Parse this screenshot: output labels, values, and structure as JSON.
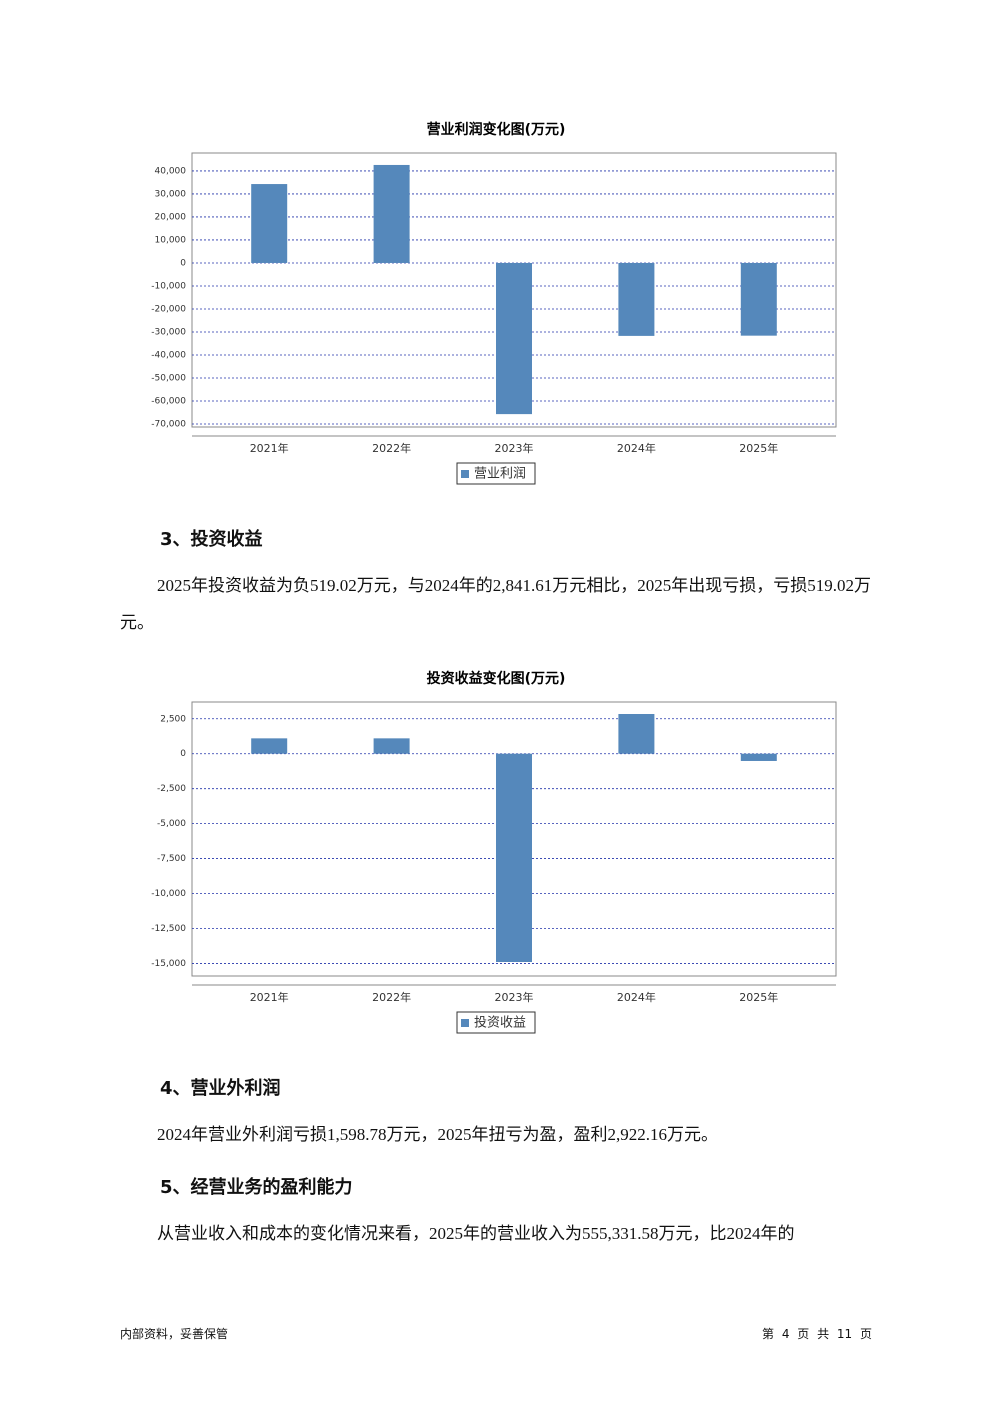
{
  "chart_data": [
    {
      "type": "bar",
      "title": "营业利润变化图(万元)",
      "categories": [
        "2021年",
        "2022年",
        "2023年",
        "2024年",
        "2025年"
      ],
      "series": [
        {
          "name": "营业利润",
          "color": "#5588bb",
          "values": [
            34300,
            42600,
            -65700,
            -31700,
            -31600
          ]
        }
      ],
      "ylim": [
        -71300,
        47800
      ],
      "yticks": [
        {
          "value": -70000,
          "label": "-70,000"
        },
        {
          "value": -60000,
          "label": "-60,000"
        },
        {
          "value": -50000,
          "label": "-50,000"
        },
        {
          "value": -40000,
          "label": "-40,000"
        },
        {
          "value": -30000,
          "label": "-30,000"
        },
        {
          "value": -20000,
          "label": "-20,000"
        },
        {
          "value": -10000,
          "label": "-10,000"
        },
        0,
        {
          "value": 10000,
          "label": "10,000"
        },
        {
          "value": 20000,
          "label": "20,000"
        },
        {
          "value": 30000,
          "label": "30,000"
        },
        {
          "value": 40000,
          "label": "40,000"
        }
      ],
      "grid": true,
      "legend": "bottom"
    },
    {
      "type": "bar",
      "title": "投资收益变化图(万元)",
      "categories": [
        "2021年",
        "2022年",
        "2023年",
        "2024年",
        "2025年"
      ],
      "series": [
        {
          "name": "投资收益",
          "color": "#5588bb",
          "values": [
            1100,
            1100,
            -14900,
            2841.61,
            -519.02
          ]
        }
      ],
      "ylim": [
        -15900,
        3700
      ],
      "yticks": [
        {
          "value": -15000,
          "label": "-15,000"
        },
        {
          "value": -12500,
          "label": "-12,500"
        },
        {
          "value": -10000,
          "label": "-10,000"
        },
        {
          "value": -7500,
          "label": "-7,500"
        },
        {
          "value": -5000,
          "label": "-5,000"
        },
        {
          "value": -2500,
          "label": "-2,500"
        },
        0,
        {
          "value": 2500,
          "label": "2,500"
        }
      ],
      "grid": true,
      "legend": "bottom"
    }
  ],
  "sections": [
    {
      "heading": "3、投资收益",
      "paragraphs": [
        "2025年投资收益为负519.02万元，与2024年的2,841.61万元相比，2025年出现亏损，亏损519.02万元。"
      ]
    },
    {
      "heading": "4、营业外利润",
      "paragraphs": [
        "2024年营业外利润亏损1,598.78万元，2025年扭亏为盈，盈利2,922.16万元。"
      ]
    },
    {
      "heading": "5、经营业务的盈利能力",
      "paragraphs": [
        "从营业收入和成本的变化情况来看，2025年的营业收入为555,331.58万元，比2024年的"
      ]
    }
  ],
  "footer": {
    "left": "内部资料，妥善保管",
    "right": "第 4 页 共 11 页"
  }
}
